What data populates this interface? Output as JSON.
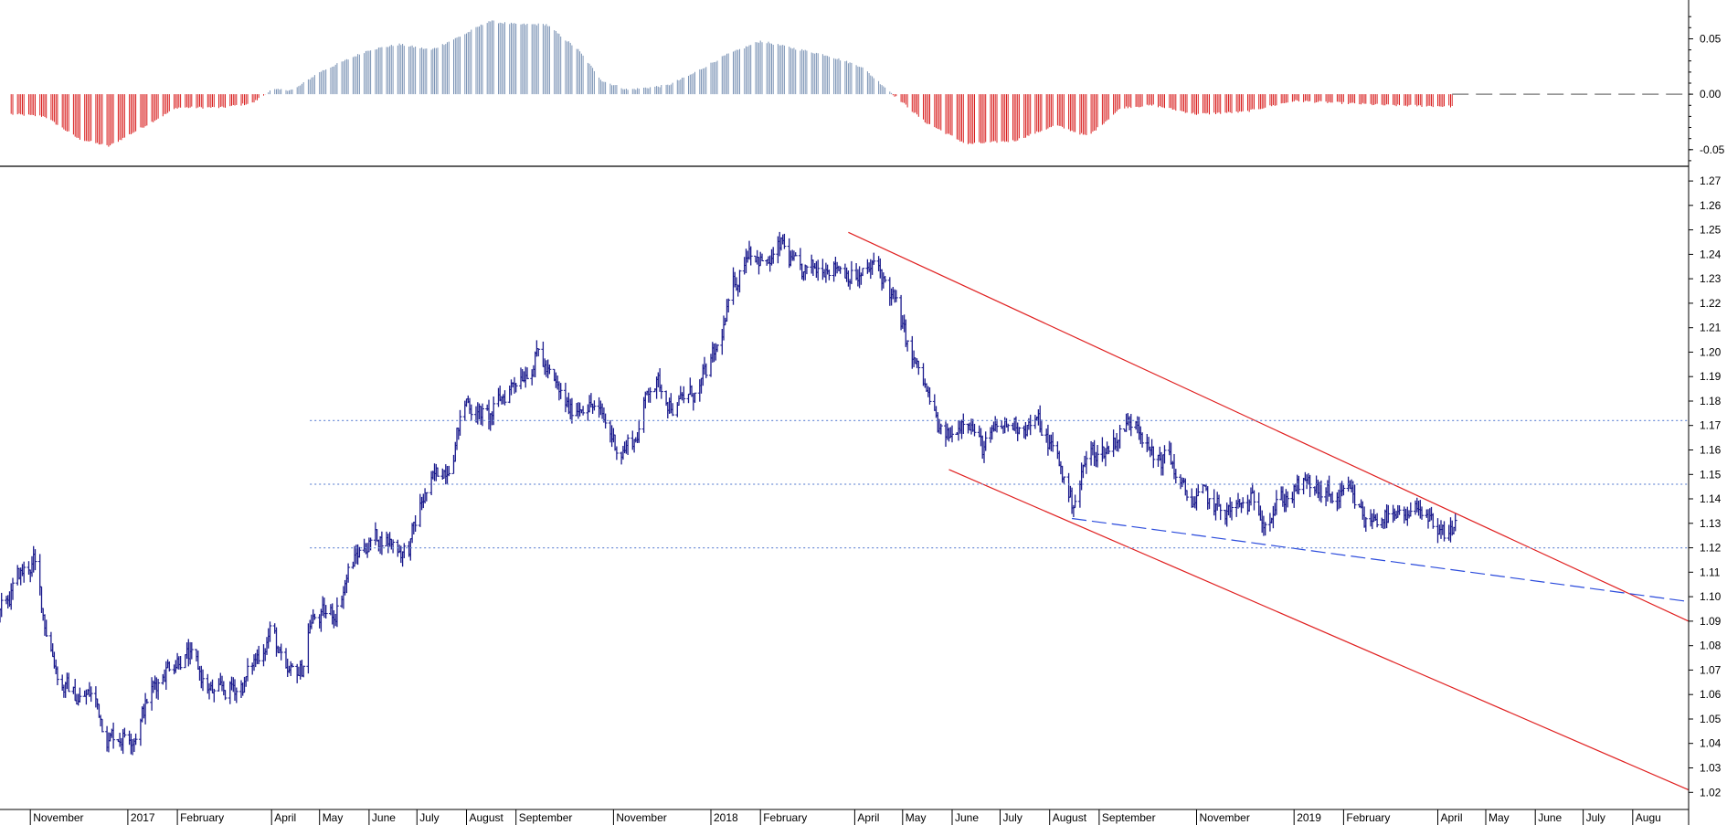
{
  "chart_data": [
    {
      "panel": "oscillator",
      "type": "bar",
      "title": "",
      "ylabel": "",
      "ylim": [
        -0.065,
        0.085
      ],
      "y_ticks": [
        "0.05",
        "0.00",
        "-0.05"
      ],
      "y_tick_values": [
        0.05,
        0.0,
        -0.05
      ],
      "zero_line": "dashed",
      "colors": {
        "positive": "#7b93b5",
        "negative": "#d92020"
      },
      "keypoints_date_value": [
        [
          "2016-10-20",
          -0.018
        ],
        [
          "2016-11-10",
          -0.02
        ],
        [
          "2016-12-01",
          -0.04
        ],
        [
          "2016-12-20",
          -0.047
        ],
        [
          "2017-01-10",
          -0.03
        ],
        [
          "2017-02-01",
          -0.012
        ],
        [
          "2017-03-01",
          -0.012
        ],
        [
          "2017-03-20",
          -0.008
        ],
        [
          "2017-04-01",
          0.004
        ],
        [
          "2017-04-15",
          0.004
        ],
        [
          "2017-05-01",
          0.02
        ],
        [
          "2017-06-01",
          0.04
        ],
        [
          "2017-06-20",
          0.045
        ],
        [
          "2017-07-10",
          0.04
        ],
        [
          "2017-08-01",
          0.055
        ],
        [
          "2017-08-15",
          0.066
        ],
        [
          "2017-09-01",
          0.063
        ],
        [
          "2017-09-20",
          0.063
        ],
        [
          "2017-10-10",
          0.04
        ],
        [
          "2017-10-25",
          0.012
        ],
        [
          "2017-11-10",
          0.004
        ],
        [
          "2017-12-05",
          0.008
        ],
        [
          "2017-12-20",
          0.018
        ],
        [
          "2018-01-10",
          0.035
        ],
        [
          "2018-02-01",
          0.048
        ],
        [
          "2018-02-20",
          0.042
        ],
        [
          "2018-03-15",
          0.035
        ],
        [
          "2018-04-05",
          0.025
        ],
        [
          "2018-04-25",
          0.0
        ],
        [
          "2018-05-15",
          -0.025
        ],
        [
          "2018-06-10",
          -0.045
        ],
        [
          "2018-07-10",
          -0.042
        ],
        [
          "2018-08-05",
          -0.028
        ],
        [
          "2018-08-25",
          -0.038
        ],
        [
          "2018-09-15",
          -0.012
        ],
        [
          "2018-10-05",
          -0.01
        ],
        [
          "2018-11-01",
          -0.018
        ],
        [
          "2018-12-01",
          -0.016
        ],
        [
          "2019-01-01",
          -0.006
        ],
        [
          "2019-02-01",
          -0.008
        ],
        [
          "2019-03-01",
          -0.01
        ],
        [
          "2019-04-10",
          -0.011
        ]
      ]
    },
    {
      "panel": "price",
      "type": "line",
      "title": "",
      "xlabel": "",
      "ylabel": "",
      "xlim": [
        "2016-10-13",
        "2019-09-05"
      ],
      "ylim": [
        1.013,
        1.276
      ],
      "x_tick_labels": [
        "November",
        "2017",
        "February",
        "April",
        "May",
        "June",
        "July",
        "August",
        "September",
        "November",
        "2018",
        "February",
        "April",
        "May",
        "June",
        "July",
        "August",
        "September",
        "November",
        "2019",
        "February",
        "April",
        "May",
        "June",
        "July",
        "Augu"
      ],
      "x_tick_dates": [
        "2016-11-01",
        "2017-01-01",
        "2017-02-01",
        "2017-04-01",
        "2017-05-01",
        "2017-06-01",
        "2017-07-01",
        "2017-08-01",
        "2017-09-01",
        "2017-11-01",
        "2018-01-01",
        "2018-02-01",
        "2018-04-01",
        "2018-05-01",
        "2018-06-01",
        "2018-07-01",
        "2018-08-01",
        "2018-09-01",
        "2018-11-01",
        "2019-01-01",
        "2019-02-01",
        "2019-04-01",
        "2019-05-01",
        "2019-06-01",
        "2019-07-01",
        "2019-08-01"
      ],
      "y_ticks": [
        "1.27",
        "1.26",
        "1.25",
        "1.24",
        "1.23",
        "1.22",
        "1.21",
        "1.20",
        "1.19",
        "1.18",
        "1.17",
        "1.16",
        "1.15",
        "1.14",
        "1.13",
        "1.12",
        "1.11",
        "1.10",
        "1.09",
        "1.08",
        "1.07",
        "1.06",
        "1.05",
        "1.04",
        "1.03",
        "1.02"
      ],
      "y_tick_values": [
        1.27,
        1.26,
        1.25,
        1.24,
        1.23,
        1.22,
        1.21,
        1.2,
        1.19,
        1.18,
        1.17,
        1.16,
        1.15,
        1.14,
        1.13,
        1.12,
        1.11,
        1.1,
        1.09,
        1.08,
        1.07,
        1.06,
        1.05,
        1.04,
        1.03,
        1.02
      ],
      "series": [
        {
          "style": "OHLC bars",
          "color": "#1a1a8c",
          "keypoints_date_value": [
            [
              "2016-10-13",
              1.092
            ],
            [
              "2016-10-25",
              1.108
            ],
            [
              "2016-11-03",
              1.114
            ],
            [
              "2016-11-10",
              1.09
            ],
            [
              "2016-11-20",
              1.065
            ],
            [
              "2016-12-01",
              1.058
            ],
            [
              "2016-12-10",
              1.06
            ],
            [
              "2016-12-20",
              1.043
            ],
            [
              "2017-01-05",
              1.045
            ],
            [
              "2017-01-15",
              1.06
            ],
            [
              "2017-01-25",
              1.072
            ],
            [
              "2017-02-05",
              1.078
            ],
            [
              "2017-02-15",
              1.068
            ],
            [
              "2017-02-25",
              1.058
            ],
            [
              "2017-03-05",
              1.062
            ],
            [
              "2017-03-15",
              1.065
            ],
            [
              "2017-03-25",
              1.078
            ],
            [
              "2017-04-01",
              1.088
            ],
            [
              "2017-04-10",
              1.065
            ],
            [
              "2017-04-20",
              1.07
            ],
            [
              "2017-04-25",
              1.09
            ],
            [
              "2017-05-10",
              1.093
            ],
            [
              "2017-05-20",
              1.112
            ],
            [
              "2017-05-30",
              1.122
            ],
            [
              "2017-06-10",
              1.125
            ],
            [
              "2017-06-25",
              1.118
            ],
            [
              "2017-07-05",
              1.14
            ],
            [
              "2017-07-20",
              1.155
            ],
            [
              "2017-08-01",
              1.18
            ],
            [
              "2017-08-15",
              1.172
            ],
            [
              "2017-09-01",
              1.19
            ],
            [
              "2017-09-15",
              1.2
            ],
            [
              "2017-09-25",
              1.185
            ],
            [
              "2017-10-05",
              1.175
            ],
            [
              "2017-10-15",
              1.182
            ],
            [
              "2017-10-25",
              1.172
            ],
            [
              "2017-11-05",
              1.16
            ],
            [
              "2017-11-15",
              1.165
            ],
            [
              "2017-11-25",
              1.19
            ],
            [
              "2017-12-10",
              1.178
            ],
            [
              "2017-12-25",
              1.185
            ],
            [
              "2018-01-05",
              1.2
            ],
            [
              "2018-01-15",
              1.225
            ],
            [
              "2018-01-25",
              1.245
            ],
            [
              "2018-02-05",
              1.235
            ],
            [
              "2018-02-15",
              1.243
            ],
            [
              "2018-02-25",
              1.23
            ],
            [
              "2018-03-05",
              1.232
            ],
            [
              "2018-03-15",
              1.238
            ],
            [
              "2018-03-25",
              1.235
            ],
            [
              "2018-04-05",
              1.23
            ],
            [
              "2018-04-15",
              1.235
            ],
            [
              "2018-04-25",
              1.222
            ],
            [
              "2018-05-05",
              1.2
            ],
            [
              "2018-05-15",
              1.185
            ],
            [
              "2018-05-25",
              1.165
            ],
            [
              "2018-06-01",
              1.165
            ],
            [
              "2018-06-10",
              1.178
            ],
            [
              "2018-06-20",
              1.16
            ],
            [
              "2018-07-01",
              1.168
            ],
            [
              "2018-07-15",
              1.172
            ],
            [
              "2018-07-25",
              1.17
            ],
            [
              "2018-08-05",
              1.158
            ],
            [
              "2018-08-15",
              1.138
            ],
            [
              "2018-08-25",
              1.158
            ],
            [
              "2018-09-05",
              1.16
            ],
            [
              "2018-09-15",
              1.168
            ],
            [
              "2018-09-25",
              1.175
            ],
            [
              "2018-10-05",
              1.155
            ],
            [
              "2018-10-15",
              1.158
            ],
            [
              "2018-10-25",
              1.14
            ],
            [
              "2018-11-05",
              1.14
            ],
            [
              "2018-11-15",
              1.135
            ],
            [
              "2018-11-25",
              1.135
            ],
            [
              "2018-12-05",
              1.138
            ],
            [
              "2018-12-15",
              1.135
            ],
            [
              "2018-12-25",
              1.14
            ],
            [
              "2019-01-05",
              1.145
            ],
            [
              "2019-01-15",
              1.143
            ],
            [
              "2019-01-25",
              1.14
            ],
            [
              "2019-02-05",
              1.14
            ],
            [
              "2019-02-15",
              1.13
            ],
            [
              "2019-02-25",
              1.135
            ],
            [
              "2019-03-05",
              1.13
            ],
            [
              "2019-03-15",
              1.13
            ],
            [
              "2019-03-20",
              1.14
            ],
            [
              "2019-03-25",
              1.132
            ],
            [
              "2019-04-01",
              1.122
            ],
            [
              "2019-04-08",
              1.125
            ],
            [
              "2019-04-12",
              1.13
            ]
          ]
        }
      ],
      "annotations": [
        {
          "type": "trendline",
          "color": "#e02020",
          "style": "solid",
          "from": [
            "2018-03-28",
            1.249
          ],
          "to": [
            "2019-09-05",
            1.09
          ]
        },
        {
          "type": "trendline",
          "color": "#e02020",
          "style": "solid",
          "from": [
            "2018-05-30",
            1.152
          ],
          "to": [
            "2019-09-05",
            1.021
          ]
        },
        {
          "type": "trendline",
          "color": "#2b4bdc",
          "style": "dashed",
          "from": [
            "2018-08-15",
            1.132
          ],
          "to": [
            "2019-09-05",
            1.098
          ]
        },
        {
          "type": "hline",
          "color": "#7090d8",
          "style": "dotted",
          "value": 1.172,
          "from": "2017-04-25"
        },
        {
          "type": "hline",
          "color": "#7090d8",
          "style": "dotted",
          "value": 1.146,
          "from": "2017-04-25"
        },
        {
          "type": "hline",
          "color": "#7090d8",
          "style": "dotted",
          "value": 1.12,
          "from": "2017-04-25"
        }
      ]
    }
  ]
}
